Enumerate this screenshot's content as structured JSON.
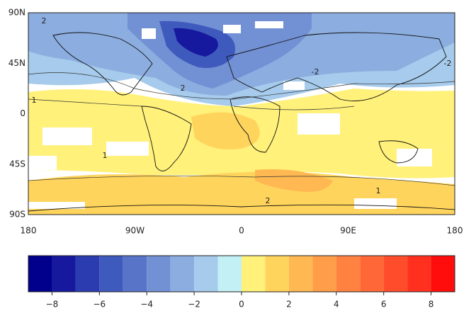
{
  "map": {
    "lat_labels": [
      "90N",
      "45N",
      "0",
      "45S",
      "90S"
    ],
    "lon_labels": [
      "180",
      "90W",
      "0",
      "90E",
      "180"
    ],
    "contour_labels": [
      "2",
      "-2",
      "2",
      "1",
      "1",
      "2",
      "1",
      "-2"
    ]
  },
  "colorbar": {
    "levels": [
      -9,
      -8,
      -7,
      -6,
      -5,
      -4,
      -3,
      -2,
      -1,
      0,
      1,
      2,
      3,
      4,
      5,
      6,
      7,
      8,
      9
    ],
    "colors": [
      "#00008c",
      "#16199e",
      "#2a3cb0",
      "#3f5abd",
      "#5874c9",
      "#7290d4",
      "#8caddf",
      "#a6cbec",
      "#c2f0f4",
      "#fff17a",
      "#ffd45c",
      "#ffb852",
      "#ff9d49",
      "#ff8240",
      "#ff6836",
      "#ff4d2b",
      "#ff311e",
      "#ff0d0d"
    ],
    "ticks": [
      {
        "value": -8,
        "label": "−8"
      },
      {
        "value": -6,
        "label": "−6"
      },
      {
        "value": -4,
        "label": "−4"
      },
      {
        "value": -2,
        "label": "−2"
      },
      0,
      2,
      4,
      6,
      8
    ]
  }
}
